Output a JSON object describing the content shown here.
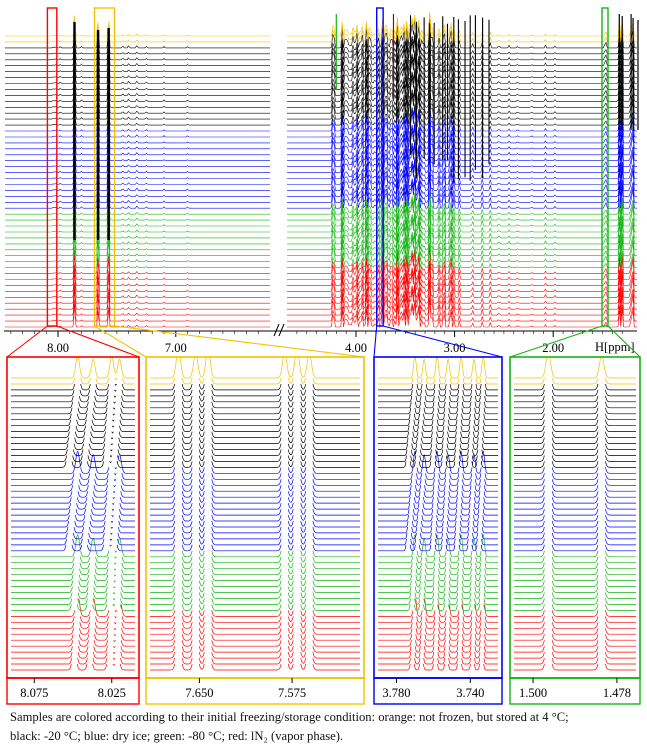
{
  "caption": {
    "line1": "Samples are colored according to their initial freezing/storage condition: orange: not frozen, but stored at 4 °C;",
    "line2": "black: -20 °C; blue: dry ice; green: -80 °C; red: lN₂ (vapor phase)."
  },
  "colors": {
    "orange": "#f2c200",
    "black": "#000000",
    "blue": "#0000ff",
    "green": "#16b416",
    "red": "#ff0000"
  },
  "chart_data": [
    {
      "type": "line",
      "title": "",
      "chart_kind": "stacked 1H NMR spectra",
      "xlabel": "H[ppm]",
      "x_direction": "descending",
      "x_ticks": [
        "8.00",
        "7.00",
        "4.00",
        "3.00",
        "2.00"
      ],
      "axis_break_between_ppm": [
        6.2,
        4.7
      ],
      "series": [
        {
          "condition": "not frozen, 4 °C",
          "color": "orange",
          "count": 2
        },
        {
          "condition": "-20 °C",
          "color": "black",
          "count": 14
        },
        {
          "condition": "dry ice",
          "color": "blue",
          "count": 14
        },
        {
          "condition": "-80 °C",
          "color": "green",
          "count": 10
        },
        {
          "condition": "lN2 (vapor phase)",
          "color": "red",
          "count": 10
        }
      ],
      "zoom_regions": [
        {
          "color": "red",
          "ppm_range": [
            8.09,
            8.01
          ]
        },
        {
          "color": "orange",
          "ppm_range": [
            7.69,
            7.52
          ]
        },
        {
          "color": "blue",
          "ppm_range": [
            3.79,
            3.725
          ]
        },
        {
          "color": "green",
          "ppm_range": [
            1.505,
            1.473
          ]
        }
      ]
    },
    {
      "type": "line",
      "panel": "zoom-1",
      "frame_color": "red",
      "x_ticks": [
        "8.075",
        "8.025"
      ],
      "xlim": [
        8.09,
        8.01
      ],
      "peaks_ppm": [
        8.047,
        8.037,
        8.025,
        8.02
      ],
      "peak_shift_ppm": 0.006
    },
    {
      "type": "line",
      "panel": "zoom-2",
      "frame_color": "orange",
      "x_ticks": [
        "7.650",
        "7.575"
      ],
      "xlim": [
        7.69,
        7.52
      ],
      "peaks_ppm": [
        7.667,
        7.653,
        7.643,
        7.581,
        7.571,
        7.561
      ]
    },
    {
      "type": "line",
      "panel": "zoom-3",
      "frame_color": "blue",
      "x_ticks": [
        "3.780",
        "3.740"
      ],
      "xlim": [
        3.79,
        3.725
      ],
      "peaks_ppm": [
        3.77,
        3.765,
        3.758,
        3.752,
        3.745,
        3.738,
        3.733
      ],
      "peak_shift_ppm": 0.004
    },
    {
      "type": "line",
      "panel": "zoom-4",
      "frame_color": "green",
      "x_ticks": [
        "1.500",
        "1.478"
      ],
      "xlim": [
        1.505,
        1.473
      ],
      "peaks_ppm": [
        1.496,
        1.482
      ]
    }
  ]
}
